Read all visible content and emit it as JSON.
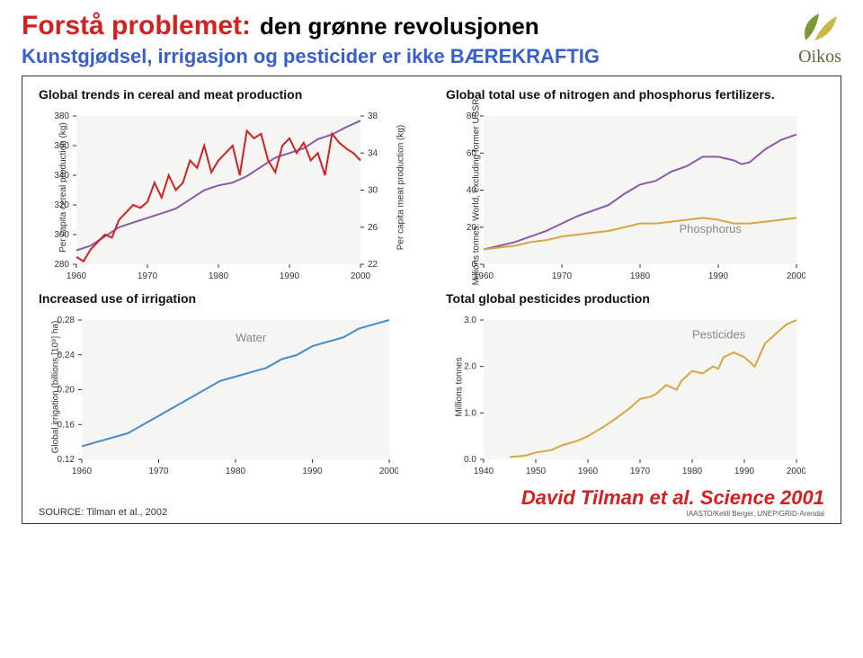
{
  "header": {
    "title_red": "Forstå problemet:",
    "title_black": "den grønne revolusjonen",
    "subtitle": "Kunstgjødsel, irrigasjon og pesticider er ikke BÆREKRAFTIG"
  },
  "logo": {
    "text": "Oikos",
    "leaf_colors": [
      "#7a9a3a",
      "#c9b84a"
    ]
  },
  "charts": {
    "cereal_meat": {
      "title": "Global trends in cereal and meat production",
      "left_axis_label": "Per capita cereal production (kg)",
      "right_axis_label": "Per capita meat production (kg)",
      "left_ticks": [
        280,
        300,
        320,
        340,
        360,
        380
      ],
      "right_ticks": [
        22,
        26,
        30,
        34,
        38
      ],
      "x_ticks": [
        1960,
        1970,
        1980,
        1990,
        2000
      ],
      "xlim": [
        1960,
        2000
      ],
      "left_ylim": [
        280,
        380
      ],
      "right_ylim": [
        22,
        38
      ],
      "cereal_color": "#d32020",
      "meat_color": "#8a5aa8",
      "line_width": 2,
      "cereal": [
        [
          1960,
          285
        ],
        [
          1961,
          282
        ],
        [
          1962,
          290
        ],
        [
          1963,
          295
        ],
        [
          1964,
          300
        ],
        [
          1965,
          298
        ],
        [
          1966,
          310
        ],
        [
          1967,
          315
        ],
        [
          1968,
          320
        ],
        [
          1969,
          318
        ],
        [
          1970,
          322
        ],
        [
          1971,
          335
        ],
        [
          1972,
          325
        ],
        [
          1973,
          340
        ],
        [
          1974,
          330
        ],
        [
          1975,
          335
        ],
        [
          1976,
          350
        ],
        [
          1977,
          345
        ],
        [
          1978,
          360
        ],
        [
          1979,
          342
        ],
        [
          1980,
          350
        ],
        [
          1981,
          355
        ],
        [
          1982,
          360
        ],
        [
          1983,
          340
        ],
        [
          1984,
          370
        ],
        [
          1985,
          365
        ],
        [
          1986,
          368
        ],
        [
          1987,
          350
        ],
        [
          1988,
          342
        ],
        [
          1989,
          360
        ],
        [
          1990,
          365
        ],
        [
          1991,
          355
        ],
        [
          1992,
          362
        ],
        [
          1993,
          350
        ],
        [
          1994,
          355
        ],
        [
          1995,
          340
        ],
        [
          1996,
          368
        ],
        [
          1997,
          362
        ],
        [
          1998,
          358
        ],
        [
          1999,
          355
        ],
        [
          2000,
          350
        ]
      ],
      "meat": [
        [
          1960,
          23.5
        ],
        [
          1962,
          24
        ],
        [
          1964,
          25
        ],
        [
          1966,
          26
        ],
        [
          1968,
          26.5
        ],
        [
          1970,
          27
        ],
        [
          1972,
          27.5
        ],
        [
          1974,
          28
        ],
        [
          1975,
          28.5
        ],
        [
          1976,
          29
        ],
        [
          1978,
          30
        ],
        [
          1980,
          30.5
        ],
        [
          1982,
          30.8
        ],
        [
          1984,
          31.5
        ],
        [
          1986,
          32.5
        ],
        [
          1988,
          33.5
        ],
        [
          1990,
          34
        ],
        [
          1992,
          34.5
        ],
        [
          1994,
          35.5
        ],
        [
          1996,
          36
        ],
        [
          1998,
          36.8
        ],
        [
          2000,
          37.5
        ]
      ]
    },
    "fertilizers": {
      "title": "Global total use of nitrogen and phosphorus fertilizers.",
      "y_axis_label": "Millions tonnes. World, excluding former USSR",
      "y_ticks": [
        0,
        20,
        40,
        60,
        80
      ],
      "x_ticks": [
        1960,
        1970,
        1980,
        1990,
        2000
      ],
      "xlim": [
        1960,
        2000
      ],
      "ylim": [
        0,
        80
      ],
      "nitrogen_color": "#8a5aa8",
      "phosphorus_color": "#d6a640",
      "line_width": 2,
      "label_phosphorus": "Phosphorus",
      "nitrogen": [
        [
          1960,
          8
        ],
        [
          1962,
          10
        ],
        [
          1964,
          12
        ],
        [
          1966,
          15
        ],
        [
          1968,
          18
        ],
        [
          1970,
          22
        ],
        [
          1972,
          26
        ],
        [
          1974,
          29
        ],
        [
          1976,
          32
        ],
        [
          1978,
          38
        ],
        [
          1980,
          43
        ],
        [
          1982,
          45
        ],
        [
          1984,
          50
        ],
        [
          1986,
          53
        ],
        [
          1988,
          58
        ],
        [
          1990,
          58
        ],
        [
          1991,
          57
        ],
        [
          1992,
          56
        ],
        [
          1993,
          54
        ],
        [
          1994,
          55
        ],
        [
          1996,
          62
        ],
        [
          1998,
          67
        ],
        [
          2000,
          70
        ]
      ],
      "phosphorus": [
        [
          1960,
          8
        ],
        [
          1962,
          9
        ],
        [
          1964,
          10
        ],
        [
          1966,
          12
        ],
        [
          1968,
          13
        ],
        [
          1970,
          15
        ],
        [
          1972,
          16
        ],
        [
          1974,
          17
        ],
        [
          1976,
          18
        ],
        [
          1978,
          20
        ],
        [
          1980,
          22
        ],
        [
          1982,
          22
        ],
        [
          1984,
          23
        ],
        [
          1986,
          24
        ],
        [
          1988,
          25
        ],
        [
          1990,
          24
        ],
        [
          1992,
          22
        ],
        [
          1994,
          22
        ],
        [
          1996,
          23
        ],
        [
          1998,
          24
        ],
        [
          2000,
          25
        ]
      ]
    },
    "irrigation": {
      "title": "Increased use of irrigation",
      "y_axis_label": "Global irrigation (billions [10⁹] ha)",
      "y_ticks": [
        0.12,
        0.16,
        0.2,
        0.24,
        0.28
      ],
      "x_ticks": [
        1960,
        1970,
        1980,
        1990,
        2000
      ],
      "xlim": [
        1960,
        2000
      ],
      "ylim": [
        0.12,
        0.28
      ],
      "color": "#4a8ac8",
      "line_width": 2,
      "label": "Water",
      "data": [
        [
          1960,
          0.135
        ],
        [
          1962,
          0.14
        ],
        [
          1964,
          0.145
        ],
        [
          1966,
          0.15
        ],
        [
          1968,
          0.16
        ],
        [
          1970,
          0.17
        ],
        [
          1972,
          0.18
        ],
        [
          1974,
          0.19
        ],
        [
          1976,
          0.2
        ],
        [
          1978,
          0.21
        ],
        [
          1980,
          0.215
        ],
        [
          1982,
          0.22
        ],
        [
          1984,
          0.225
        ],
        [
          1986,
          0.235
        ],
        [
          1988,
          0.24
        ],
        [
          1990,
          0.25
        ],
        [
          1992,
          0.255
        ],
        [
          1994,
          0.26
        ],
        [
          1996,
          0.27
        ],
        [
          1998,
          0.275
        ],
        [
          2000,
          0.28
        ]
      ]
    },
    "pesticides": {
      "title": "Total global pesticides production",
      "y_axis_label": "Millions tonnes",
      "y_ticks": [
        0,
        1.0,
        2.0,
        3.0
      ],
      "x_ticks": [
        1940,
        1950,
        1960,
        1970,
        1980,
        1990,
        2000
      ],
      "xlim": [
        1940,
        2000
      ],
      "ylim": [
        0,
        3.0
      ],
      "color": "#d6a640",
      "line_width": 2,
      "label": "Pesticides",
      "data": [
        [
          1945,
          0.05
        ],
        [
          1948,
          0.08
        ],
        [
          1950,
          0.15
        ],
        [
          1953,
          0.2
        ],
        [
          1955,
          0.3
        ],
        [
          1958,
          0.4
        ],
        [
          1960,
          0.5
        ],
        [
          1963,
          0.7
        ],
        [
          1965,
          0.85
        ],
        [
          1968,
          1.1
        ],
        [
          1970,
          1.3
        ],
        [
          1972,
          1.35
        ],
        [
          1973,
          1.4
        ],
        [
          1975,
          1.6
        ],
        [
          1977,
          1.5
        ],
        [
          1978,
          1.7
        ],
        [
          1980,
          1.9
        ],
        [
          1982,
          1.85
        ],
        [
          1984,
          2.0
        ],
        [
          1985,
          1.95
        ],
        [
          1986,
          2.2
        ],
        [
          1988,
          2.3
        ],
        [
          1990,
          2.2
        ],
        [
          1992,
          2.0
        ],
        [
          1994,
          2.5
        ],
        [
          1996,
          2.7
        ],
        [
          1998,
          2.9
        ],
        [
          2000,
          3.0
        ]
      ]
    }
  },
  "footer": {
    "source": "SOURCE: Tilman et al., 2002",
    "citation": "David Tilman et al. Science 2001",
    "credit": "IAASTD/Ketill Berger, UNEP/GRID-Arendal"
  },
  "style": {
    "plot_bg": "#f5f6f4",
    "axis_color": "#333333",
    "tick_font_size": 10,
    "annotation_color": "#888888"
  }
}
